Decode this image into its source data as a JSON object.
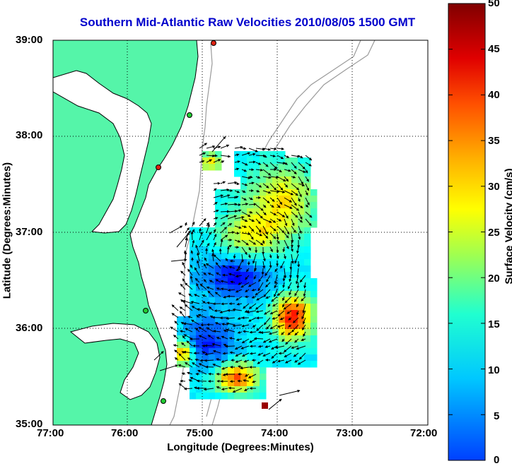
{
  "title": "Southern Mid-Atlantic Raw Velocities 2010/08/05 1500 GMT",
  "xlabel": "Longitude (Degrees:Minutes)",
  "ylabel": "Latitude (Degrees:Minutes)",
  "colorbar_label": "Surface Velocity (cm/s)",
  "x_ticks": [
    "77:00",
    "76:00",
    "75:00",
    "74:00",
    "73:00",
    "72:00"
  ],
  "y_ticks": [
    "39:00",
    "38:00",
    "37:00",
    "36:00",
    "35:00"
  ],
  "colorbar_ticks": [
    "50",
    "45",
    "40",
    "35",
    "30",
    "25",
    "20",
    "15",
    "10",
    "5",
    "0"
  ],
  "colors": {
    "land": "#55f5a9",
    "coastline": "#000000",
    "bathymetry": "#9a9a9a",
    "grid": "#000000",
    "title": "#0000cc",
    "site_green": "#22cc33",
    "site_red": "#dd2211"
  },
  "chart_data": {
    "type": "heatmap",
    "description_units": "surface current speed, cm/s",
    "xlim_deg_west": [
      77,
      72
    ],
    "ylim_deg_north": [
      35,
      39
    ],
    "clim": [
      0,
      50
    ],
    "colormap": "jet",
    "grid": true
  }
}
